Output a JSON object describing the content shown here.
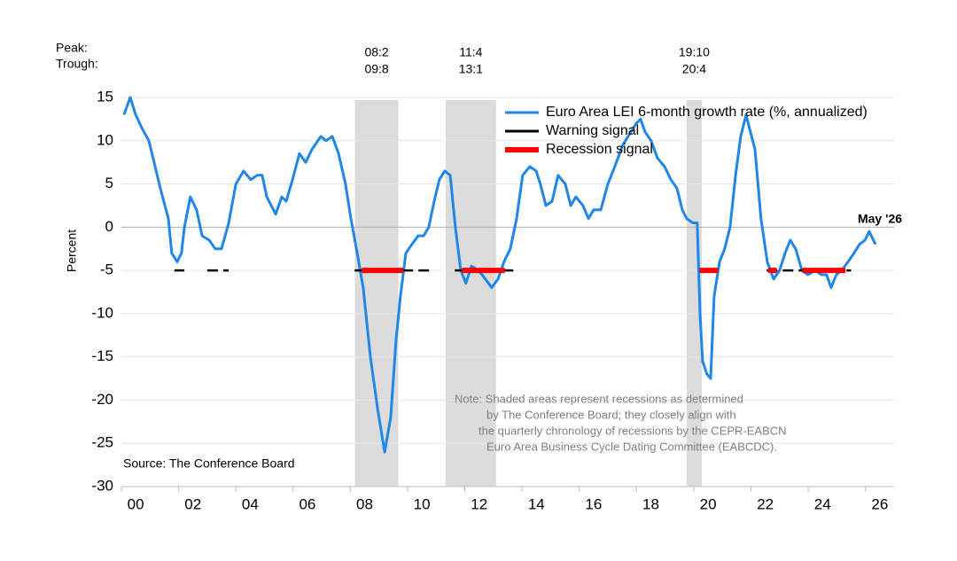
{
  "chart_data": {
    "type": "line",
    "y_axis_label": "Percent",
    "peak_label": "Peak:",
    "trough_label": "Trough:",
    "source": "Source: The Conference Board",
    "note": [
      "Note: Shaded areas represent recessions as determined",
      "by The Conference Board; they closely align with",
      "the quarterly chronology of recessions by the CEPR-EABCN",
      "Euro Area Business Cycle Dating Committee (EABCDC)."
    ],
    "end_annotation": "May '26",
    "xlim": [
      2000,
      2027
    ],
    "xticks": [
      {
        "value": 2000,
        "label": "00"
      },
      {
        "value": 2002,
        "label": "02"
      },
      {
        "value": 2004,
        "label": "04"
      },
      {
        "value": 2006,
        "label": "06"
      },
      {
        "value": 2008,
        "label": "08"
      },
      {
        "value": 2010,
        "label": "10"
      },
      {
        "value": 2012,
        "label": "12"
      },
      {
        "value": 2014,
        "label": "14"
      },
      {
        "value": 2016,
        "label": "16"
      },
      {
        "value": 2018,
        "label": "18"
      },
      {
        "value": 2020,
        "label": "20"
      },
      {
        "value": 2022,
        "label": "22"
      },
      {
        "value": 2024,
        "label": "24"
      },
      {
        "value": 2026,
        "label": "26"
      }
    ],
    "ylim": [
      -30,
      15
    ],
    "yticks": [
      -30,
      -25,
      -20,
      -15,
      -10,
      -5,
      0,
      5,
      10,
      15
    ],
    "grid": true,
    "recessions": [
      {
        "peak": "08:2",
        "trough": "09:8",
        "start": 2008.16,
        "end": 2009.68
      },
      {
        "peak": "11:4",
        "trough": "13:1",
        "start": 2011.33,
        "end": 2013.09
      },
      {
        "peak": "19:10",
        "trough": "20:4",
        "start": 2019.75,
        "end": 2020.28
      }
    ],
    "recession_color": "#dcdcdc",
    "series": [
      {
        "name": "Euro Area LEI 6-month growth rate (%, annualized)",
        "color": "#1f87e8",
        "x": [
          2000.09,
          2000.31,
          2000.5,
          2000.71,
          2000.96,
          2001.18,
          2001.36,
          2001.64,
          2001.76,
          2001.95,
          2002.1,
          2002.2,
          2002.41,
          2002.63,
          2002.82,
          2003.07,
          2003.28,
          2003.5,
          2003.75,
          2004.0,
          2004.27,
          2004.52,
          2004.74,
          2004.92,
          2005.08,
          2005.39,
          2005.6,
          2005.76,
          2005.98,
          2006.22,
          2006.44,
          2006.66,
          2006.97,
          2007.15,
          2007.37,
          2007.59,
          2007.83,
          2008.02,
          2008.24,
          2008.45,
          2008.7,
          2008.95,
          2009.2,
          2009.41,
          2009.6,
          2009.75,
          2009.94,
          2010.15,
          2010.37,
          2010.56,
          2010.74,
          2010.93,
          2011.11,
          2011.3,
          2011.49,
          2011.67,
          2011.86,
          2012.04,
          2012.23,
          2012.48,
          2012.72,
          2012.94,
          2013.16,
          2013.37,
          2013.59,
          2013.81,
          2014.02,
          2014.27,
          2014.49,
          2014.64,
          2014.83,
          2015.05,
          2015.26,
          2015.51,
          2015.7,
          2015.88,
          2016.13,
          2016.32,
          2016.5,
          2016.75,
          2017.0,
          2017.24,
          2017.52,
          2017.8,
          2017.99,
          2018.14,
          2018.3,
          2018.51,
          2018.73,
          2018.98,
          2019.2,
          2019.41,
          2019.6,
          2019.75,
          2019.97,
          2020.12,
          2020.22,
          2020.31,
          2020.46,
          2020.59,
          2020.71,
          2020.9,
          2021.08,
          2021.27,
          2021.46,
          2021.64,
          2021.83,
          2021.98,
          2022.14,
          2022.35,
          2022.57,
          2022.79,
          2023.0,
          2023.19,
          2023.37,
          2023.56,
          2023.78,
          2023.99,
          2024.24,
          2024.46,
          2024.64,
          2024.8,
          2024.98,
          2025.17,
          2025.39,
          2025.6,
          2025.79,
          2025.98,
          2026.13,
          2026.35
        ],
        "values": [
          13,
          15,
          13,
          11.5,
          10,
          7,
          4.5,
          1,
          -3,
          -4,
          -3,
          0,
          3.5,
          2,
          -1,
          -1.5,
          -2.5,
          -2.5,
          0.5,
          5,
          6.5,
          5.5,
          6,
          6,
          3.5,
          1.5,
          3.5,
          3,
          5.5,
          8.5,
          7.5,
          9,
          10.5,
          10,
          10.5,
          8.5,
          5,
          1,
          -3,
          -7,
          -15,
          -21,
          -26,
          -22,
          -13,
          -8,
          -3,
          -2,
          -1,
          -1,
          0,
          3,
          5.5,
          6.5,
          6,
          0,
          -5,
          -6.5,
          -4.5,
          -5,
          -6,
          -7,
          -6,
          -4,
          -2.5,
          1,
          6,
          7,
          6.5,
          5,
          2.5,
          3,
          6,
          5,
          2.5,
          3.5,
          2.5,
          1,
          2,
          2,
          5,
          7,
          9.5,
          11,
          12,
          12.5,
          11,
          10,
          8,
          7,
          5.5,
          4.5,
          2,
          1,
          0.5,
          0.5,
          -10,
          -15.5,
          -17,
          -17.5,
          -8,
          -4,
          -2.5,
          0,
          6,
          10.5,
          13,
          11,
          9,
          1,
          -4,
          -6,
          -5,
          -3,
          -1.5,
          -2.5,
          -5,
          -5.5,
          -5,
          -5.5,
          -5.5,
          -7,
          -5.5,
          -5,
          -4,
          -3,
          -2,
          -1.5,
          -0.5,
          -2
        ]
      },
      {
        "name": "Warning signal",
        "color": "#000000",
        "segments": [
          {
            "start": 2001.85,
            "end": 2002.2,
            "value": -5
          },
          {
            "start": 2003.0,
            "end": 2003.75,
            "value": -5
          },
          {
            "start": 2008.15,
            "end": 2010.85,
            "value": -5
          },
          {
            "start": 2011.65,
            "end": 2013.7,
            "value": -5
          },
          {
            "start": 2020.2,
            "end": 2020.85,
            "value": -5
          },
          {
            "start": 2022.55,
            "end": 2025.5,
            "value": -5
          }
        ]
      },
      {
        "name": "Recession signal",
        "color": "#ff0000",
        "segments": [
          {
            "start": 2008.4,
            "end": 2009.85,
            "value": -5
          },
          {
            "start": 2011.9,
            "end": 2013.4,
            "value": -5
          },
          {
            "start": 2020.2,
            "end": 2020.85,
            "value": -5
          },
          {
            "start": 2022.6,
            "end": 2022.9,
            "value": -5
          },
          {
            "start": 2023.8,
            "end": 2025.3,
            "value": -5
          }
        ]
      }
    ]
  }
}
